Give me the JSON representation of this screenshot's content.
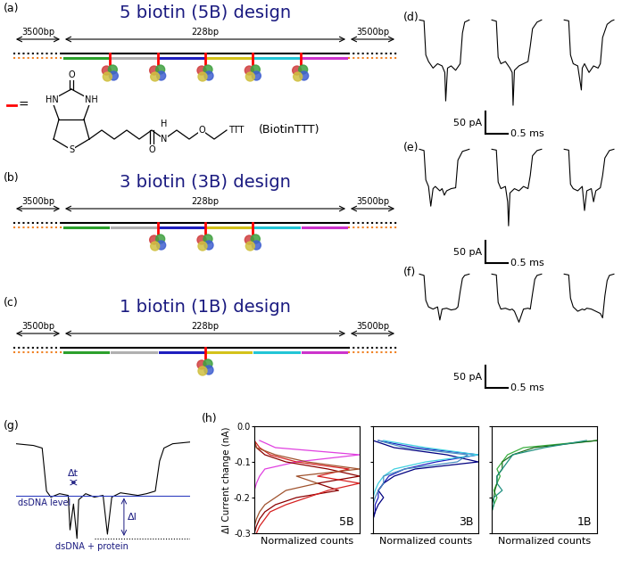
{
  "panels": {
    "designs": [
      {
        "label": "(a)",
        "title": "5 biotin (5B) design",
        "flank_left": "3500bp",
        "insert": "228bp",
        "flank_right": "3500bp",
        "biotin_sites": [
          1,
          2,
          3,
          4,
          5
        ]
      },
      {
        "label": "(b)",
        "title": "3 biotin (3B) design",
        "flank_left": "3500bp",
        "insert": "228bp",
        "flank_right": "3500bp",
        "biotin_sites": [
          2,
          3,
          4
        ]
      },
      {
        "label": "(c)",
        "title": "1 biotin (1B) design",
        "flank_left": "3500bp",
        "insert": "228bp",
        "flank_right": "3500bp",
        "biotin_sites": [
          3
        ]
      }
    ],
    "biotin_linker": {
      "symbol": "=",
      "name": "(BiotinTTT)",
      "atoms": [
        "O",
        "HN",
        "NH",
        "S",
        "O",
        "N",
        "H",
        "O",
        "TTT"
      ]
    },
    "traces": [
      {
        "label": "(d)",
        "xlim": [
          -0.1,
          4.4
        ],
        "ylim": [
          -260,
          15
        ],
        "scale_current": 50,
        "scale_current_label": "50 pA",
        "scale_time": 0.5,
        "scale_time_label": "0.5 ms",
        "events": [
          {
            "start": 0,
            "t": [
              0,
              0.1,
              0.14,
              0.2,
              0.3,
              0.4,
              0.5,
              0.56,
              0.58,
              0.62,
              0.7,
              0.8,
              0.9,
              0.95,
              1.0,
              1.1
            ],
            "i": [
              0,
              -2,
              -80,
              -95,
              -110,
              -100,
              -105,
              -120,
              -185,
              -110,
              -105,
              -115,
              -100,
              -30,
              -5,
              0
            ]
          },
          {
            "start": 1.6,
            "t": [
              0,
              0.1,
              0.14,
              0.2,
              0.3,
              0.4,
              0.45,
              0.47,
              0.5,
              0.6,
              0.7,
              0.8,
              0.85,
              0.9,
              1.0,
              1.1
            ],
            "i": [
              0,
              -3,
              -85,
              -100,
              -95,
              -110,
              -120,
              -195,
              -115,
              -105,
              -100,
              -95,
              -60,
              -20,
              -5,
              0
            ]
          },
          {
            "start": 3.2,
            "t": [
              0,
              0.1,
              0.14,
              0.2,
              0.3,
              0.38,
              0.4,
              0.45,
              0.55,
              0.65,
              0.75,
              0.8,
              0.85,
              0.95,
              1.05,
              1.1
            ],
            "i": [
              0,
              -2,
              -80,
              -100,
              -105,
              -160,
              -110,
              -100,
              -120,
              -105,
              -110,
              -100,
              -40,
              -10,
              -2,
              0
            ]
          }
        ]
      },
      {
        "label": "(e)",
        "xlim": [
          -0.1,
          4.4
        ],
        "ylim": [
          -260,
          15
        ],
        "scale_current": 50,
        "scale_current_label": "50 pA",
        "scale_time": 0.5,
        "scale_time_label": "0.5 ms",
        "events": [
          {
            "start": 0,
            "t": [
              0,
              0.1,
              0.14,
              0.2,
              0.25,
              0.3,
              0.35,
              0.45,
              0.5,
              0.55,
              0.6,
              0.7,
              0.8,
              0.85,
              0.95,
              1.1
            ],
            "i": [
              0,
              -3,
              -70,
              -85,
              -130,
              -90,
              -85,
              -95,
              -90,
              -105,
              -95,
              -90,
              -88,
              -25,
              -5,
              0
            ]
          },
          {
            "start": 1.6,
            "t": [
              0,
              0.1,
              0.14,
              0.2,
              0.3,
              0.35,
              0.37,
              0.4,
              0.5,
              0.6,
              0.7,
              0.8,
              0.85,
              0.9,
              1.0,
              1.1
            ],
            "i": [
              0,
              -2,
              -75,
              -90,
              -85,
              -120,
              -175,
              -100,
              -90,
              -95,
              -85,
              -90,
              -60,
              -15,
              -3,
              0
            ]
          },
          {
            "start": 3.2,
            "t": [
              0,
              0.1,
              0.14,
              0.2,
              0.3,
              0.4,
              0.45,
              0.5,
              0.6,
              0.65,
              0.7,
              0.8,
              0.85,
              0.9,
              1.0,
              1.1
            ],
            "i": [
              0,
              -2,
              -80,
              -90,
              -95,
              -85,
              -140,
              -95,
              -90,
              -120,
              -95,
              -88,
              -60,
              -20,
              -3,
              0
            ]
          }
        ]
      },
      {
        "label": "(f)",
        "xlim": [
          -0.1,
          4.4
        ],
        "ylim": [
          -260,
          15
        ],
        "scale_current": 50,
        "scale_current_label": "50 pA",
        "scale_time": 0.5,
        "scale_time_label": "0.5 ms",
        "events": [
          {
            "start": 0,
            "t": [
              0,
              0.1,
              0.14,
              0.2,
              0.3,
              0.4,
              0.45,
              0.5,
              0.6,
              0.7,
              0.8,
              0.85,
              0.9,
              0.95,
              1.0,
              1.1
            ],
            "i": [
              0,
              -3,
              -60,
              -75,
              -80,
              -75,
              -105,
              -80,
              -78,
              -82,
              -80,
              -75,
              -40,
              -10,
              -3,
              0
            ]
          },
          {
            "start": 1.6,
            "t": [
              0,
              0.1,
              0.14,
              0.2,
              0.3,
              0.4,
              0.45,
              0.5,
              0.6,
              0.7,
              0.8,
              0.85,
              0.9,
              0.95,
              1.0,
              1.1
            ],
            "i": [
              0,
              -2,
              -65,
              -80,
              -78,
              -82,
              -80,
              -85,
              -110,
              -80,
              -78,
              -80,
              -45,
              -12,
              -3,
              0
            ]
          },
          {
            "start": 3.2,
            "t": [
              0,
              0.1,
              0.14,
              0.2,
              0.3,
              0.4,
              0.45,
              0.5,
              0.6,
              0.7,
              0.8,
              0.85,
              0.9,
              0.95,
              1.0,
              1.1
            ],
            "i": [
              0,
              -2,
              -55,
              -75,
              -85,
              -80,
              -82,
              -78,
              -80,
              -85,
              -90,
              -100,
              -50,
              -15,
              -3,
              0
            ]
          }
        ]
      }
    ],
    "event_schematic": {
      "label": "(g)",
      "xlim": [
        0,
        2
      ],
      "ylim": [
        -135,
        10
      ],
      "t": [
        0,
        0.2,
        0.3,
        0.35,
        0.4,
        0.5,
        0.6,
        0.62,
        0.66,
        0.7,
        0.72,
        0.8,
        0.9,
        1.0,
        1.05,
        1.1,
        1.2,
        1.4,
        1.5,
        1.6,
        1.65,
        1.7,
        1.8,
        2.0
      ],
      "i": [
        0,
        -2,
        -5,
        -55,
        -62,
        -58,
        -60,
        -100,
        -70,
        -110,
        -65,
        -58,
        -62,
        -60,
        -105,
        -62,
        -57,
        -60,
        -58,
        -55,
        -20,
        -5,
        0,
        2
      ],
      "dsdna_level": -60,
      "protein_level": -110,
      "dt_span": [
        0.6,
        0.72
      ],
      "dt_label": "Δt",
      "di_label": "ΔI",
      "dsdna_label": "dsDNA level",
      "protein_label": "dsDNA + protein"
    },
    "histograms_label": "(h)"
  },
  "chart_data": [
    {
      "type": "line",
      "title": "5B",
      "orientation": "horizontal",
      "xlabel": "Normalized counts",
      "ylabel": "ΔI Current change (nA)",
      "y": [
        -0.04,
        -0.06,
        -0.08,
        -0.1,
        -0.12,
        -0.14,
        -0.16,
        -0.18,
        -0.2,
        -0.22,
        -0.24,
        -0.26,
        -0.28,
        -0.3
      ],
      "series": [
        {
          "color": "#e040e0",
          "values": [
            0.05,
            0.2,
            1.0,
            0.4,
            0.1,
            0.05,
            0.02,
            0,
            0,
            0,
            0,
            0,
            0,
            0
          ]
        },
        {
          "color": "#8b0000",
          "values": [
            0,
            0.02,
            0.1,
            0.3,
            0.7,
            1.0,
            0.6,
            0.8,
            0.4,
            0.2,
            0.1,
            0.05,
            0.02,
            0
          ]
        },
        {
          "color": "#d62020",
          "values": [
            0,
            0.05,
            0.15,
            0.4,
            0.9,
            0.6,
            1.0,
            0.7,
            0.5,
            0.3,
            0.15,
            0.1,
            0.05,
            0.02
          ]
        },
        {
          "color": "#a0522d",
          "values": [
            0,
            0.02,
            0.2,
            0.5,
            1.0,
            0.4,
            0.6,
            0.3,
            0.2,
            0.1,
            0.05,
            0.02,
            0,
            0
          ]
        }
      ],
      "xlim": [
        0,
        1
      ],
      "ylim": [
        -0.3,
        0
      ],
      "yticks": [
        0.0,
        -0.1,
        -0.2,
        -0.3
      ],
      "tick_labels": "y"
    },
    {
      "type": "line",
      "title": "3B",
      "orientation": "horizontal",
      "xlabel": "Normalized counts",
      "y": [
        -0.04,
        -0.06,
        -0.08,
        -0.1,
        -0.12,
        -0.14,
        -0.16,
        -0.18,
        -0.2,
        -0.22,
        -0.24,
        -0.26,
        -0.28,
        -0.3
      ],
      "series": [
        {
          "color": "#2020c0",
          "values": [
            0.05,
            0.4,
            1.0,
            0.6,
            0.3,
            0.15,
            0.1,
            0.05,
            0.05,
            0.02,
            0.02,
            0,
            0,
            0
          ]
        },
        {
          "color": "#000080",
          "values": [
            0,
            0.2,
            0.7,
            1.0,
            0.4,
            0.2,
            0.1,
            0.05,
            0.1,
            0.05,
            0.02,
            0,
            0,
            0
          ]
        },
        {
          "color": "#40d0e0",
          "values": [
            0.1,
            0.5,
            1.0,
            0.5,
            0.2,
            0.1,
            0.05,
            0.02,
            0,
            0,
            0,
            0,
            0,
            0
          ]
        },
        {
          "color": "#4a90c0",
          "values": [
            0.05,
            0.3,
            0.9,
            0.8,
            0.3,
            0.1,
            0.1,
            0.05,
            0.02,
            0,
            0,
            0,
            0,
            0
          ]
        }
      ],
      "xlim": [
        0,
        1
      ],
      "ylim": [
        -0.3,
        0
      ],
      "yticks": [
        0.0,
        -0.1,
        -0.2,
        -0.3
      ],
      "tick_labels": false
    },
    {
      "type": "line",
      "title": "1B",
      "orientation": "horizontal",
      "xlabel": "Normalized counts",
      "y": [
        -0.04,
        -0.06,
        -0.08,
        -0.1,
        -0.12,
        -0.14,
        -0.16,
        -0.18,
        -0.2,
        -0.22,
        -0.24,
        -0.26,
        -0.28,
        -0.3
      ],
      "series": [
        {
          "color": "#3cb040",
          "values": [
            1.0,
            0.3,
            0.15,
            0.1,
            0.05,
            0.08,
            0.05,
            0.02,
            0.05,
            0.02,
            0,
            0,
            0,
            0
          ]
        },
        {
          "color": "#1a6b1a",
          "values": [
            1.0,
            0.4,
            0.2,
            0.1,
            0.1,
            0.05,
            0.05,
            0.03,
            0.02,
            0,
            0,
            0,
            0,
            0
          ]
        },
        {
          "color": "#209080",
          "values": [
            0.9,
            0.5,
            0.2,
            0.15,
            0.1,
            0.05,
            0.05,
            0.1,
            0.02,
            0.02,
            0,
            0,
            0,
            0
          ]
        }
      ],
      "xlim": [
        0,
        1
      ],
      "ylim": [
        -0.3,
        0
      ],
      "yticks": [
        0.0,
        -0.1,
        -0.2,
        -0.3
      ],
      "tick_labels": false
    }
  ]
}
